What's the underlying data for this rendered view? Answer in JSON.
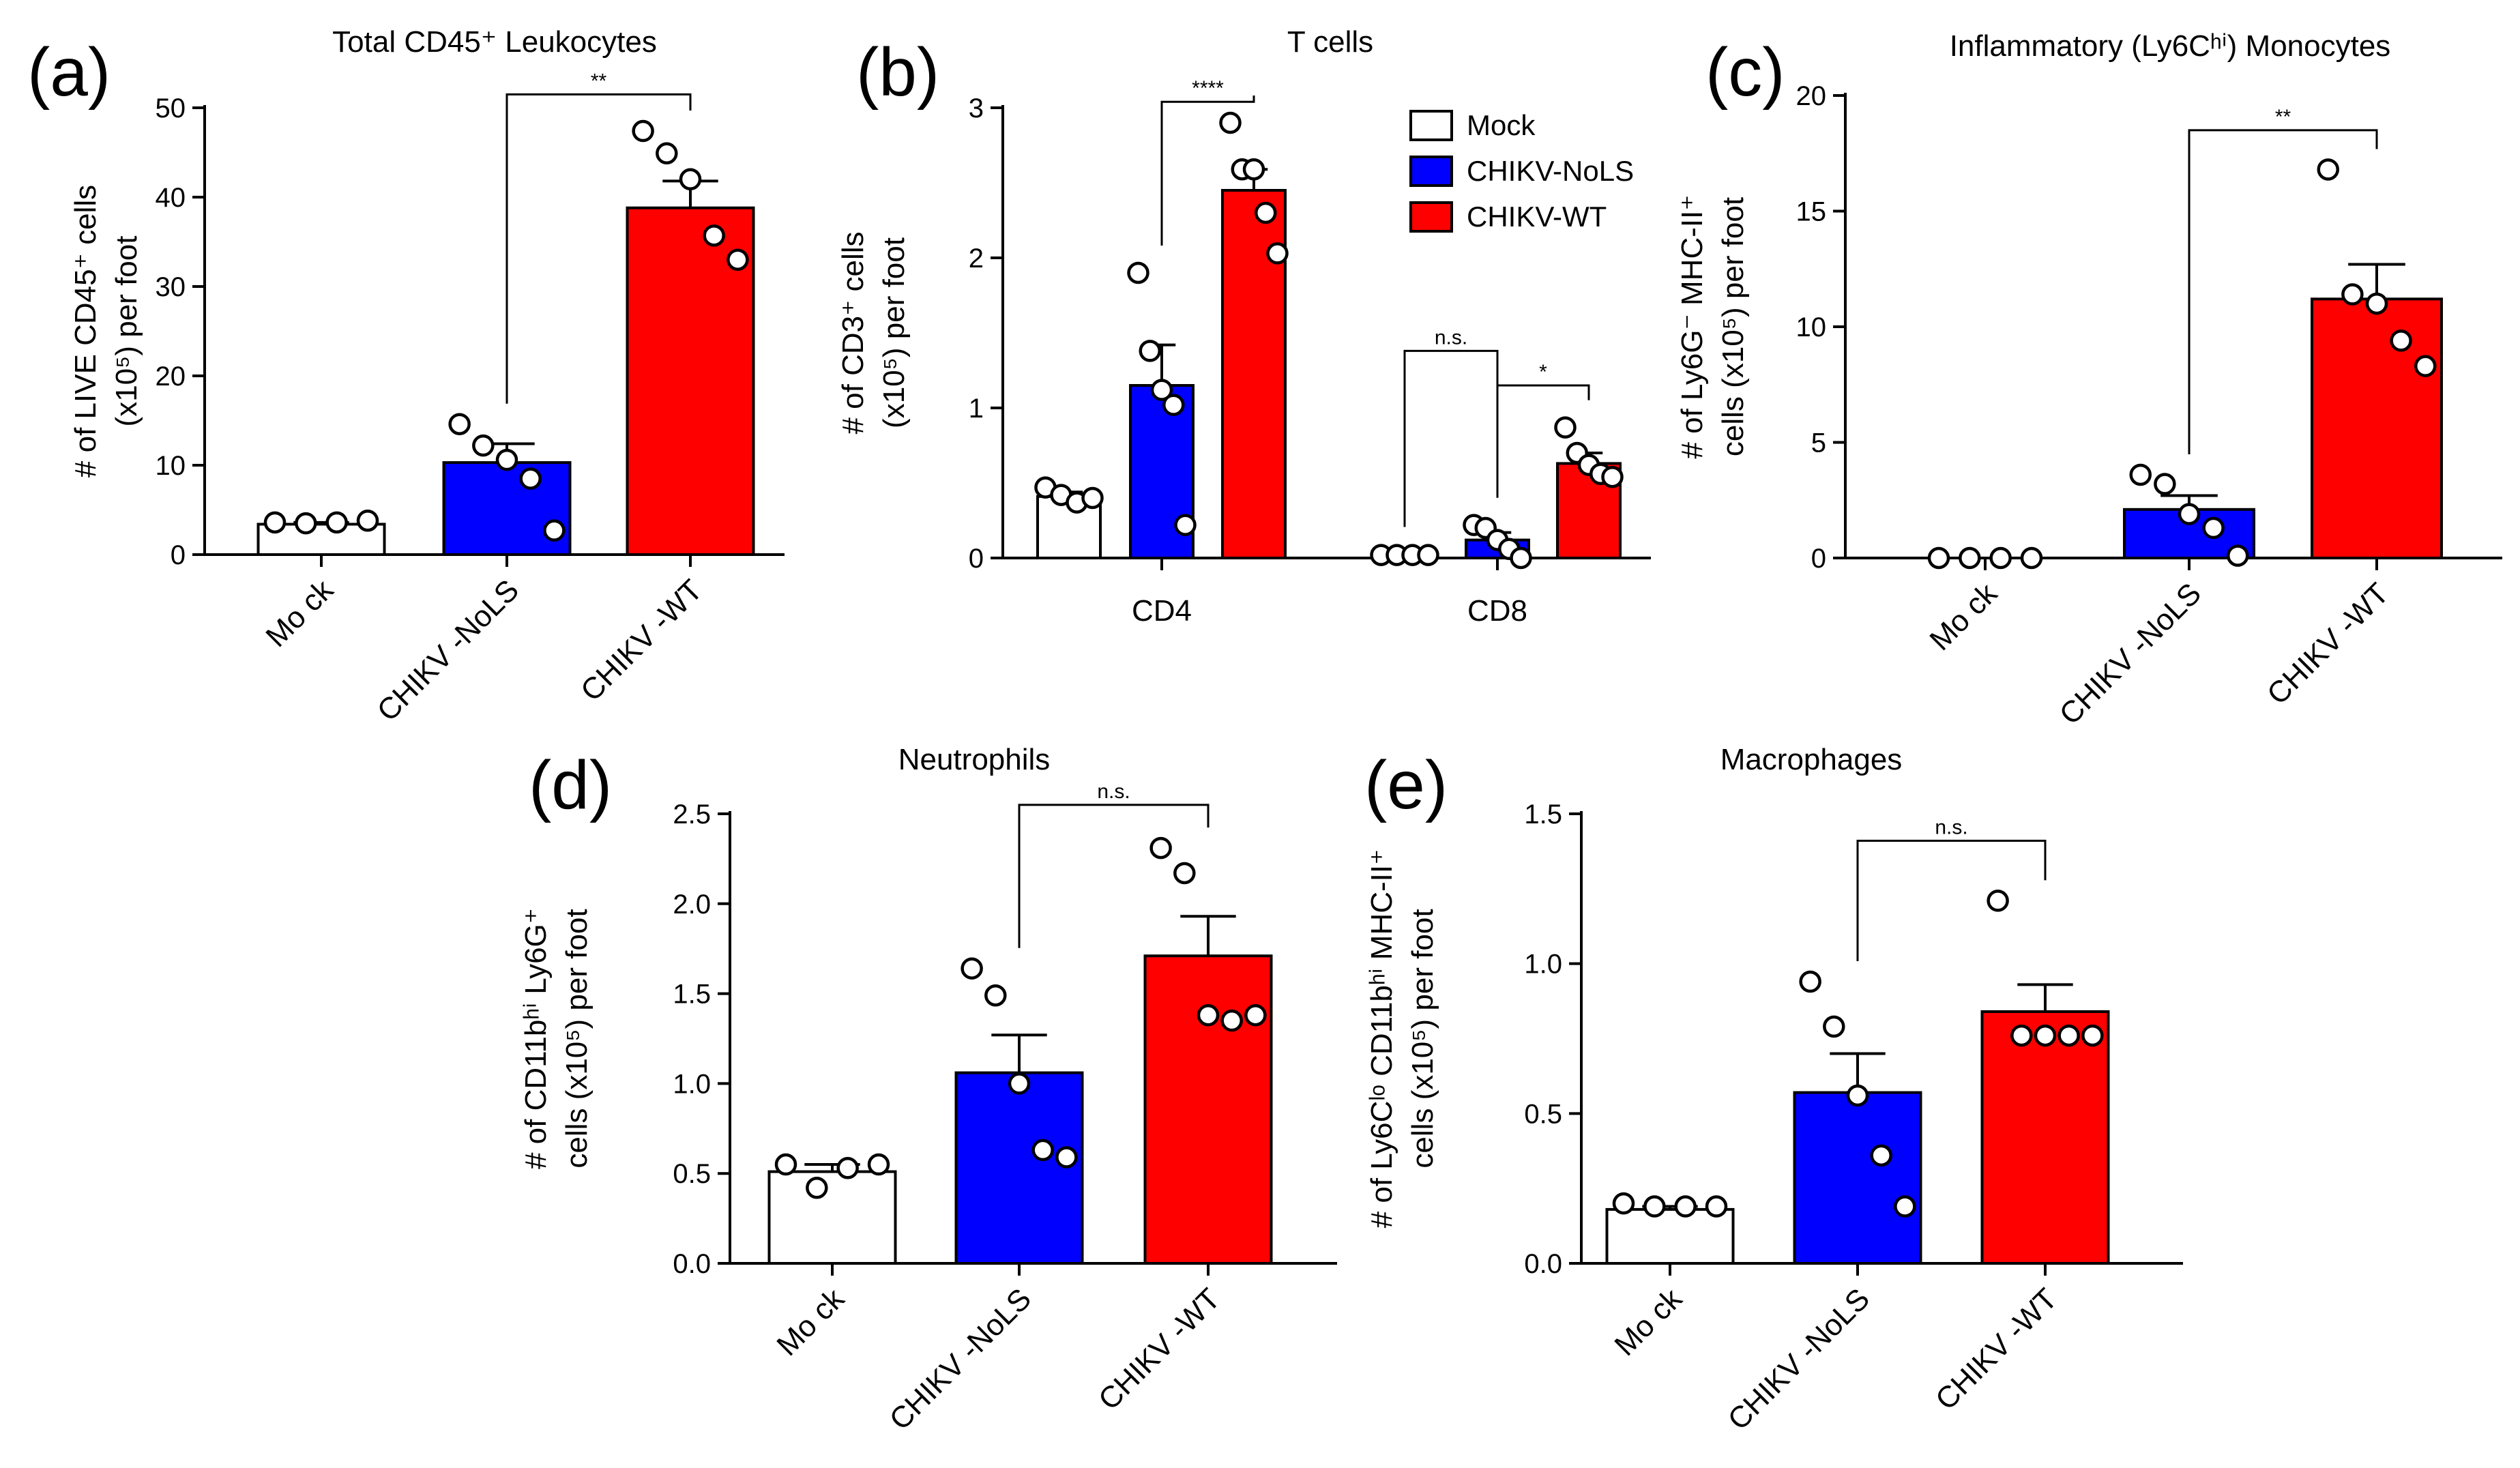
{
  "colors": {
    "mock": "#ffffff",
    "nols": "#0000ff",
    "wt": "#ff0000",
    "stroke": "#000000"
  },
  "chart_data": [
    {
      "id": "a",
      "type": "bar",
      "panel": "(a)",
      "title": "Total CD45⁺ Leukocytes",
      "ylabel": [
        "# of LIVE CD45⁺ cells",
        "(x10⁵) per foot"
      ],
      "categories": [
        "Mock",
        "CHIKV-NoLS",
        "CHIKV-WT"
      ],
      "category_labels": [
        "Mo ck",
        "CHIKV -NoLS",
        "CHIKV -WT"
      ],
      "ylim": [
        0,
        50
      ],
      "yticks": [
        0,
        10,
        20,
        30,
        40,
        50
      ],
      "ytick_labels": [
        "0",
        "10",
        "20",
        "30",
        "40",
        "50"
      ],
      "values": [
        3.4,
        10.3,
        38.8
      ],
      "errors": [
        0.2,
        2.1,
        3.0
      ],
      "points": [
        [
          3.6,
          3.5,
          3.6,
          3.8
        ],
        [
          14.6,
          12.2,
          10.6,
          8.5,
          2.7
        ],
        [
          47.4,
          44.9,
          42.0,
          35.7,
          33.0
        ]
      ],
      "significance": [
        {
          "from": 1,
          "to": 2,
          "label": "**",
          "y": 51.5
        }
      ]
    },
    {
      "id": "b",
      "type": "bar",
      "panel": "(b)",
      "title": "T cells",
      "ylabel": [
        "# of CD3⁺ cells",
        "(x10⁵) per foot"
      ],
      "groups": [
        "CD4",
        "CD8"
      ],
      "series": [
        {
          "name": "Mock",
          "values": [
            0.41,
            0.02
          ],
          "errors": [
            0.03,
            0.005
          ],
          "points": [
            [
              0.47,
              0.42,
              0.37,
              0.4
            ],
            [
              0.02,
              0.02,
              0.02,
              0.02
            ]
          ]
        },
        {
          "name": "CHIKV-NoLS",
          "values": [
            1.15,
            0.12
          ],
          "errors": [
            0.27,
            0.05
          ],
          "points": [
            [
              1.9,
              1.38,
              1.12,
              1.02,
              0.22
            ],
            [
              0.22,
              0.2,
              0.12,
              0.06,
              0.0
            ]
          ]
        },
        {
          "name": "CHIKV-WT",
          "values": [
            2.45,
            0.63
          ],
          "errors": [
            0.14,
            0.07
          ],
          "points": [
            [
              2.9,
              2.59,
              2.59,
              2.3,
              2.03
            ],
            [
              0.87,
              0.7,
              0.62,
              0.56,
              0.54
            ]
          ]
        }
      ],
      "ylim": [
        0,
        3
      ],
      "yticks": [
        0,
        1,
        2,
        3
      ],
      "ytick_labels": [
        "0",
        "1",
        "2",
        "3"
      ],
      "legend": [
        "Mock",
        "CHIKV-NoLS",
        "CHIKV-WT"
      ],
      "significance": [
        {
          "group": 0,
          "from": 1,
          "to": 2,
          "label": "****",
          "y": 3.04
        },
        {
          "group": 1,
          "from": 0,
          "to": 1,
          "label": "n.s.",
          "y": 1.38
        },
        {
          "group": 1,
          "from": 1,
          "to": 2,
          "label": "*",
          "y": 1.15
        }
      ]
    },
    {
      "id": "c",
      "type": "bar",
      "panel": "(c)",
      "title": "Inflammatory (Ly6Cʰⁱ) Monocytes",
      "ylabel": [
        "# of Ly6G⁻ MHC-II⁺",
        "cells (x10⁵) per foot"
      ],
      "categories": [
        "Mock",
        "CHIKV-NoLS",
        "CHIKV-WT"
      ],
      "category_labels": [
        "Mo ck",
        "CHIKV -NoLS",
        "CHIKV -WT"
      ],
      "ylim": [
        0,
        20
      ],
      "yticks": [
        0,
        5,
        10,
        15,
        20
      ],
      "ytick_labels": [
        "0",
        "5",
        "10",
        "15",
        "20"
      ],
      "values": [
        0.0,
        2.1,
        11.2
      ],
      "errors": [
        0.0,
        0.6,
        1.5
      ],
      "points": [
        [
          0.0,
          0.0,
          0.0,
          0.0
        ],
        [
          3.6,
          3.2,
          1.9,
          1.3,
          0.1
        ],
        [
          16.8,
          11.4,
          11.0,
          9.4,
          8.3
        ]
      ],
      "significance": [
        {
          "from": 1,
          "to": 2,
          "label": "**",
          "y": 18.5
        }
      ]
    },
    {
      "id": "d",
      "type": "bar",
      "panel": "(d)",
      "title": "Neutrophils",
      "ylabel": [
        "# of CD11bʰⁱ Ly6G⁺",
        "cells (x10⁵) per foot"
      ],
      "categories": [
        "Mock",
        "CHIKV-NoLS",
        "CHIKV-WT"
      ],
      "category_labels": [
        "Mo ck",
        "CHIKV -NoLS",
        "CHIKV -WT"
      ],
      "ylim": [
        0,
        2.5
      ],
      "yticks": [
        0,
        0.5,
        1.0,
        1.5,
        2.0,
        2.5
      ],
      "ytick_labels": [
        "0.0",
        "0.5",
        "1.0",
        "1.5",
        "2.0",
        "2.5"
      ],
      "values": [
        0.51,
        1.06,
        1.71
      ],
      "errors": [
        0.04,
        0.21,
        0.22
      ],
      "points": [
        [
          0.55,
          0.42,
          0.53,
          0.55
        ],
        [
          1.64,
          1.49,
          1.0,
          0.63,
          0.59
        ],
        [
          2.31,
          2.17,
          1.38,
          1.35,
          1.38
        ]
      ],
      "significance": [
        {
          "from": 1,
          "to": 2,
          "label": "n.s.",
          "y": 2.55
        }
      ]
    },
    {
      "id": "e",
      "type": "bar",
      "panel": "(e)",
      "title": "Macrophages",
      "ylabel": [
        "# of Ly6Cˡᵒ CD11bʰⁱ MHC-II⁺",
        "cells (x10⁵) per foot"
      ],
      "categories": [
        "Mock",
        "CHIKV-NoLS",
        "CHIKV-WT"
      ],
      "category_labels": [
        "Mo ck",
        "CHIKV -NoLS",
        "CHIKV -WT"
      ],
      "ylim": [
        0,
        1.5
      ],
      "yticks": [
        0,
        0.5,
        1.0,
        1.5
      ],
      "ytick_labels": [
        "0.0",
        "0.5",
        "1.0",
        "1.5"
      ],
      "values": [
        0.18,
        0.57,
        0.84
      ],
      "errors": [
        0.01,
        0.13,
        0.09
      ],
      "points": [
        [
          0.2,
          0.19,
          0.19,
          0.19
        ],
        [
          0.94,
          0.79,
          0.56,
          0.36,
          0.19
        ],
        [
          1.21,
          0.76,
          0.76,
          0.76,
          0.76
        ]
      ],
      "significance": [
        {
          "from": 1,
          "to": 2,
          "label": "n.s.",
          "y": 1.41
        }
      ]
    }
  ]
}
